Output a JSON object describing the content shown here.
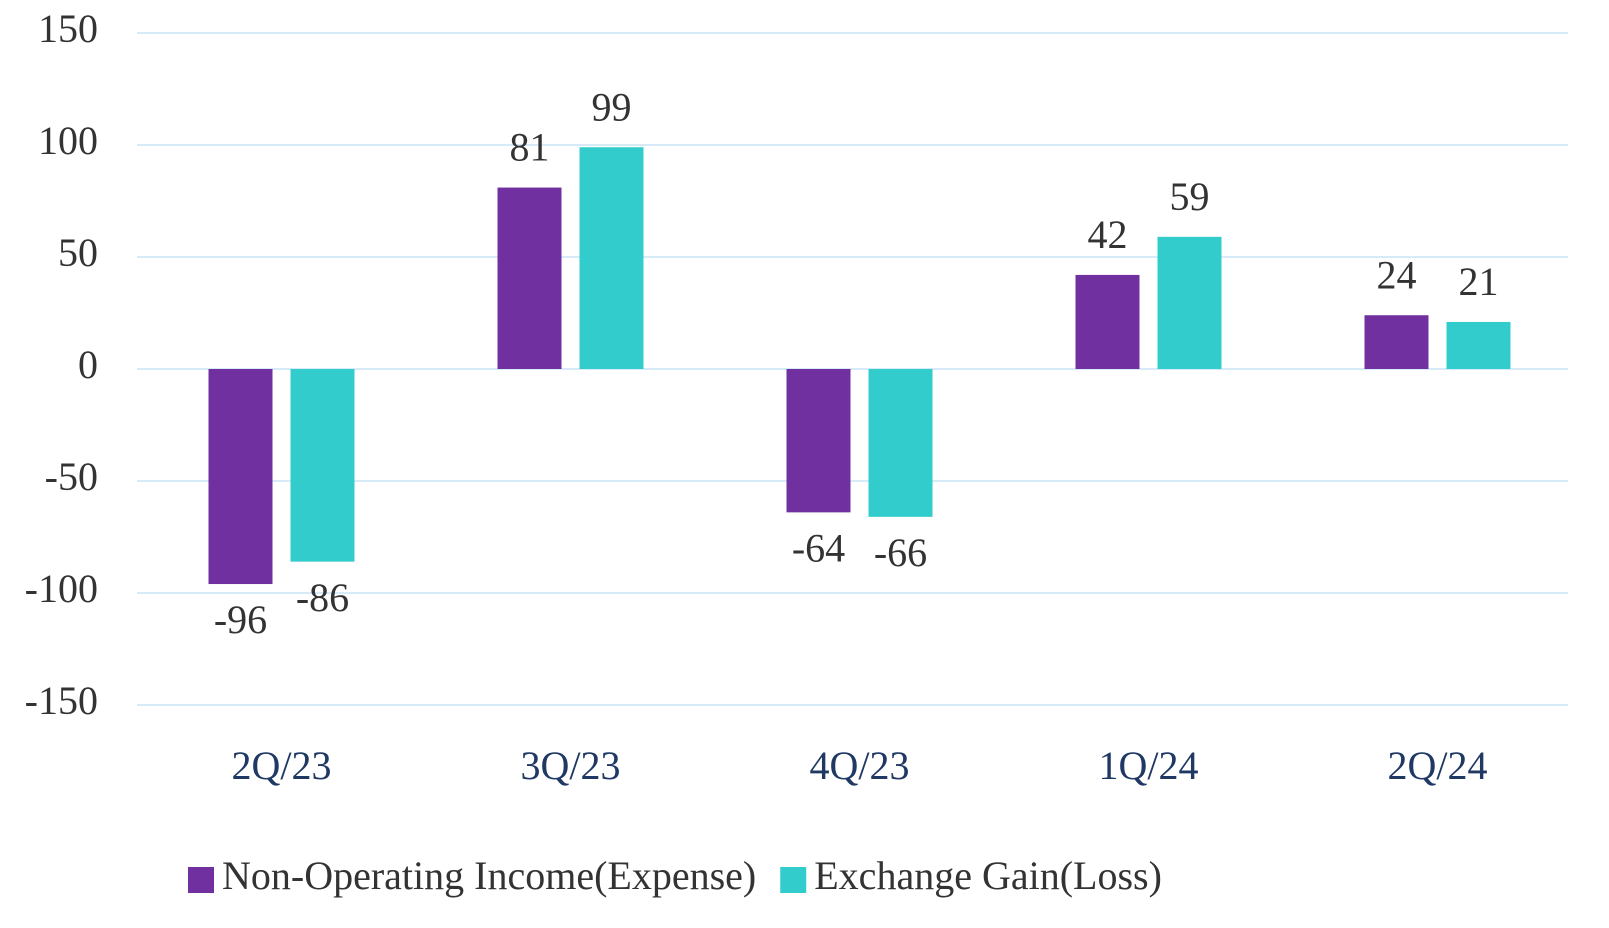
{
  "chart_data": {
    "type": "bar",
    "categories": [
      "2Q/23",
      "3Q/23",
      "4Q/23",
      "1Q/24",
      "2Q/24"
    ],
    "series": [
      {
        "name": "Non-Operating Income(Expense)",
        "color": "#7030a0",
        "values": [
          -96,
          81,
          -64,
          42,
          24
        ]
      },
      {
        "name": "Exchange Gain(Loss)",
        "color": "#33cccc",
        "values": [
          -86,
          99,
          -66,
          59,
          21
        ]
      }
    ],
    "ylim": [
      -150,
      150
    ],
    "yticks": [
      -150,
      -100,
      -50,
      0,
      50,
      100,
      150
    ],
    "grid": true,
    "legend": "bottom"
  }
}
